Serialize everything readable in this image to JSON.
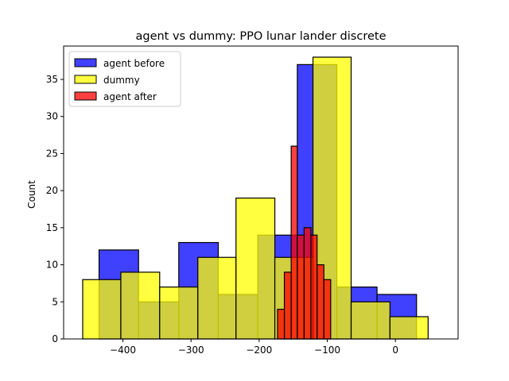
{
  "chart_data": {
    "type": "histogram",
    "title": "agent vs dummy: PPO lunar lander discrete",
    "xlabel": "",
    "ylabel": "Count",
    "xlim": [
      -487,
      92
    ],
    "ylim": [
      0,
      39.5
    ],
    "xticks": [
      -400,
      -300,
      -200,
      -100,
      0
    ],
    "xtick_labels": [
      "−400",
      "−300",
      "−200",
      "−100",
      "0"
    ],
    "yticks": [
      0,
      5,
      10,
      15,
      20,
      25,
      30,
      35
    ],
    "ytick_labels": [
      "0",
      "5",
      "10",
      "15",
      "20",
      "25",
      "30",
      "35"
    ],
    "grid": false,
    "legend": {
      "location": "upper-left"
    },
    "series": [
      {
        "name": "agent before",
        "color": "#0000ff",
        "alpha": 0.75,
        "bins": [
          {
            "x0": -435,
            "x1": -377,
            "count": 12
          },
          {
            "x0": -377,
            "x1": -318,
            "count": 5
          },
          {
            "x0": -318,
            "x1": -260,
            "count": 13
          },
          {
            "x0": -260,
            "x1": -202,
            "count": 6
          },
          {
            "x0": -202,
            "x1": -144,
            "count": 14
          },
          {
            "x0": -144,
            "x1": -86,
            "count": 37
          },
          {
            "x0": -86,
            "x1": -27,
            "count": 7
          },
          {
            "x0": -27,
            "x1": 31,
            "count": 6
          }
        ]
      },
      {
        "name": "dummy",
        "color": "#ffff00",
        "alpha": 0.75,
        "bins": [
          {
            "x0": -459,
            "x1": -403,
            "count": 8
          },
          {
            "x0": -403,
            "x1": -346,
            "count": 9
          },
          {
            "x0": -346,
            "x1": -290,
            "count": 7
          },
          {
            "x0": -290,
            "x1": -234,
            "count": 11
          },
          {
            "x0": -234,
            "x1": -177,
            "count": 19
          },
          {
            "x0": -177,
            "x1": -121,
            "count": 11
          },
          {
            "x0": -121,
            "x1": -65,
            "count": 38
          },
          {
            "x0": -65,
            "x1": -8,
            "count": 5
          },
          {
            "x0": -8,
            "x1": 48,
            "count": 3
          }
        ]
      },
      {
        "name": "agent after",
        "color": "#ff0000",
        "alpha": 0.75,
        "bins": [
          {
            "x0": -173,
            "x1": -163,
            "count": 4
          },
          {
            "x0": -163,
            "x1": -153,
            "count": 9
          },
          {
            "x0": -153,
            "x1": -144,
            "count": 26
          },
          {
            "x0": -144,
            "x1": -134,
            "count": 14
          },
          {
            "x0": -134,
            "x1": -124,
            "count": 15
          },
          {
            "x0": -124,
            "x1": -115,
            "count": 14
          },
          {
            "x0": -115,
            "x1": -105,
            "count": 10
          },
          {
            "x0": -105,
            "x1": -95,
            "count": 8
          },
          {
            "x0": -95,
            "x1": -85,
            "count": 0
          }
        ]
      }
    ]
  }
}
